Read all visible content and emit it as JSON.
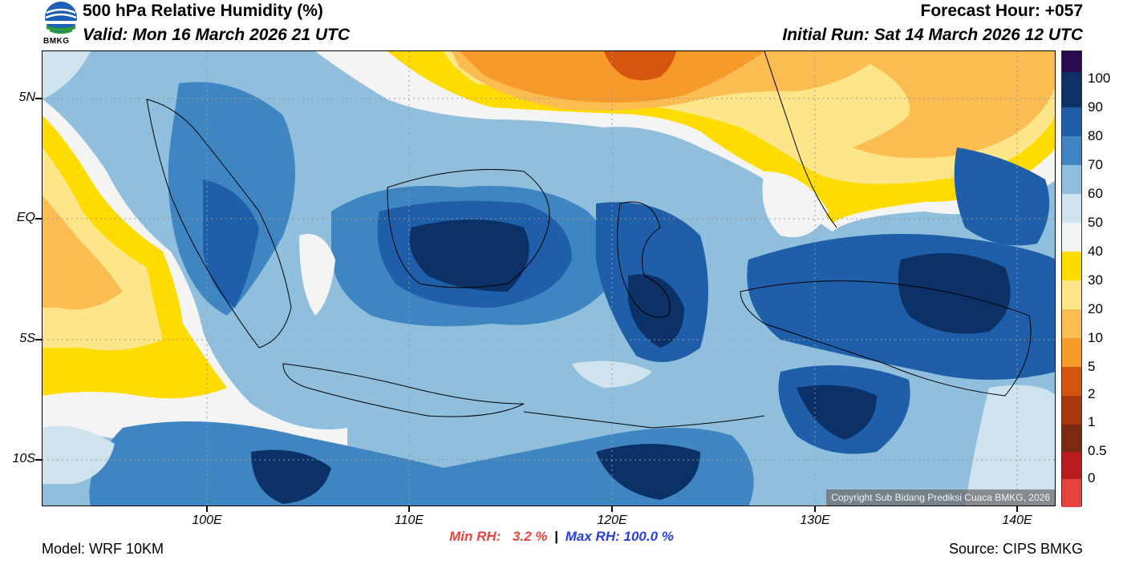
{
  "header": {
    "title": "500 hPa Relative Humidity (%)",
    "valid": "Valid: Mon 16 March 2026 21 UTC",
    "forecast_hour": "Forecast Hour: +057",
    "initial_run": "Initial Run: Sat 14 March 2026 12 UTC",
    "logo_text": "BMKG"
  },
  "map": {
    "lat_labels": [
      "5N",
      "EQ",
      "5S",
      "10S"
    ],
    "lon_labels": [
      "100E",
      "110E",
      "120E",
      "130E",
      "140E"
    ],
    "copyright": "Copyright Sub Bidang Prediksi Cuaca BMKG, 2026"
  },
  "legend": {
    "labels": [
      "100",
      "90",
      "80",
      "70",
      "60",
      "50",
      "40",
      "30",
      "20",
      "10",
      "5",
      "2",
      "1",
      "0.5",
      "0"
    ],
    "colors": {
      "gt100": "#2b0a4f",
      "90_100": "#0b3166",
      "80_90": "#1f5ea8",
      "70_80": "#3e85c1",
      "60_70": "#8fbfdc",
      "50_60": "#cfe3ef",
      "40_50": "#f4f4f4",
      "30_40": "#ffdc00",
      "20_30": "#fde68a",
      "10_20": "#fbbc52",
      "5_10": "#f79a2a",
      "2_5": "#d4560e",
      "1_2": "#a93a0d",
      "0.5_1": "#7a2a10",
      "0_0.5": "#b81c1c",
      "lt0": "#e8423e"
    }
  },
  "stats": {
    "min_label": "Min RH:",
    "min_value": "3.2 %",
    "separator": "|",
    "max_label": "Max RH:",
    "max_value": "100.0 %"
  },
  "footer": {
    "model": "Model: WRF 10KM",
    "source": "Source: CIPS BMKG"
  }
}
